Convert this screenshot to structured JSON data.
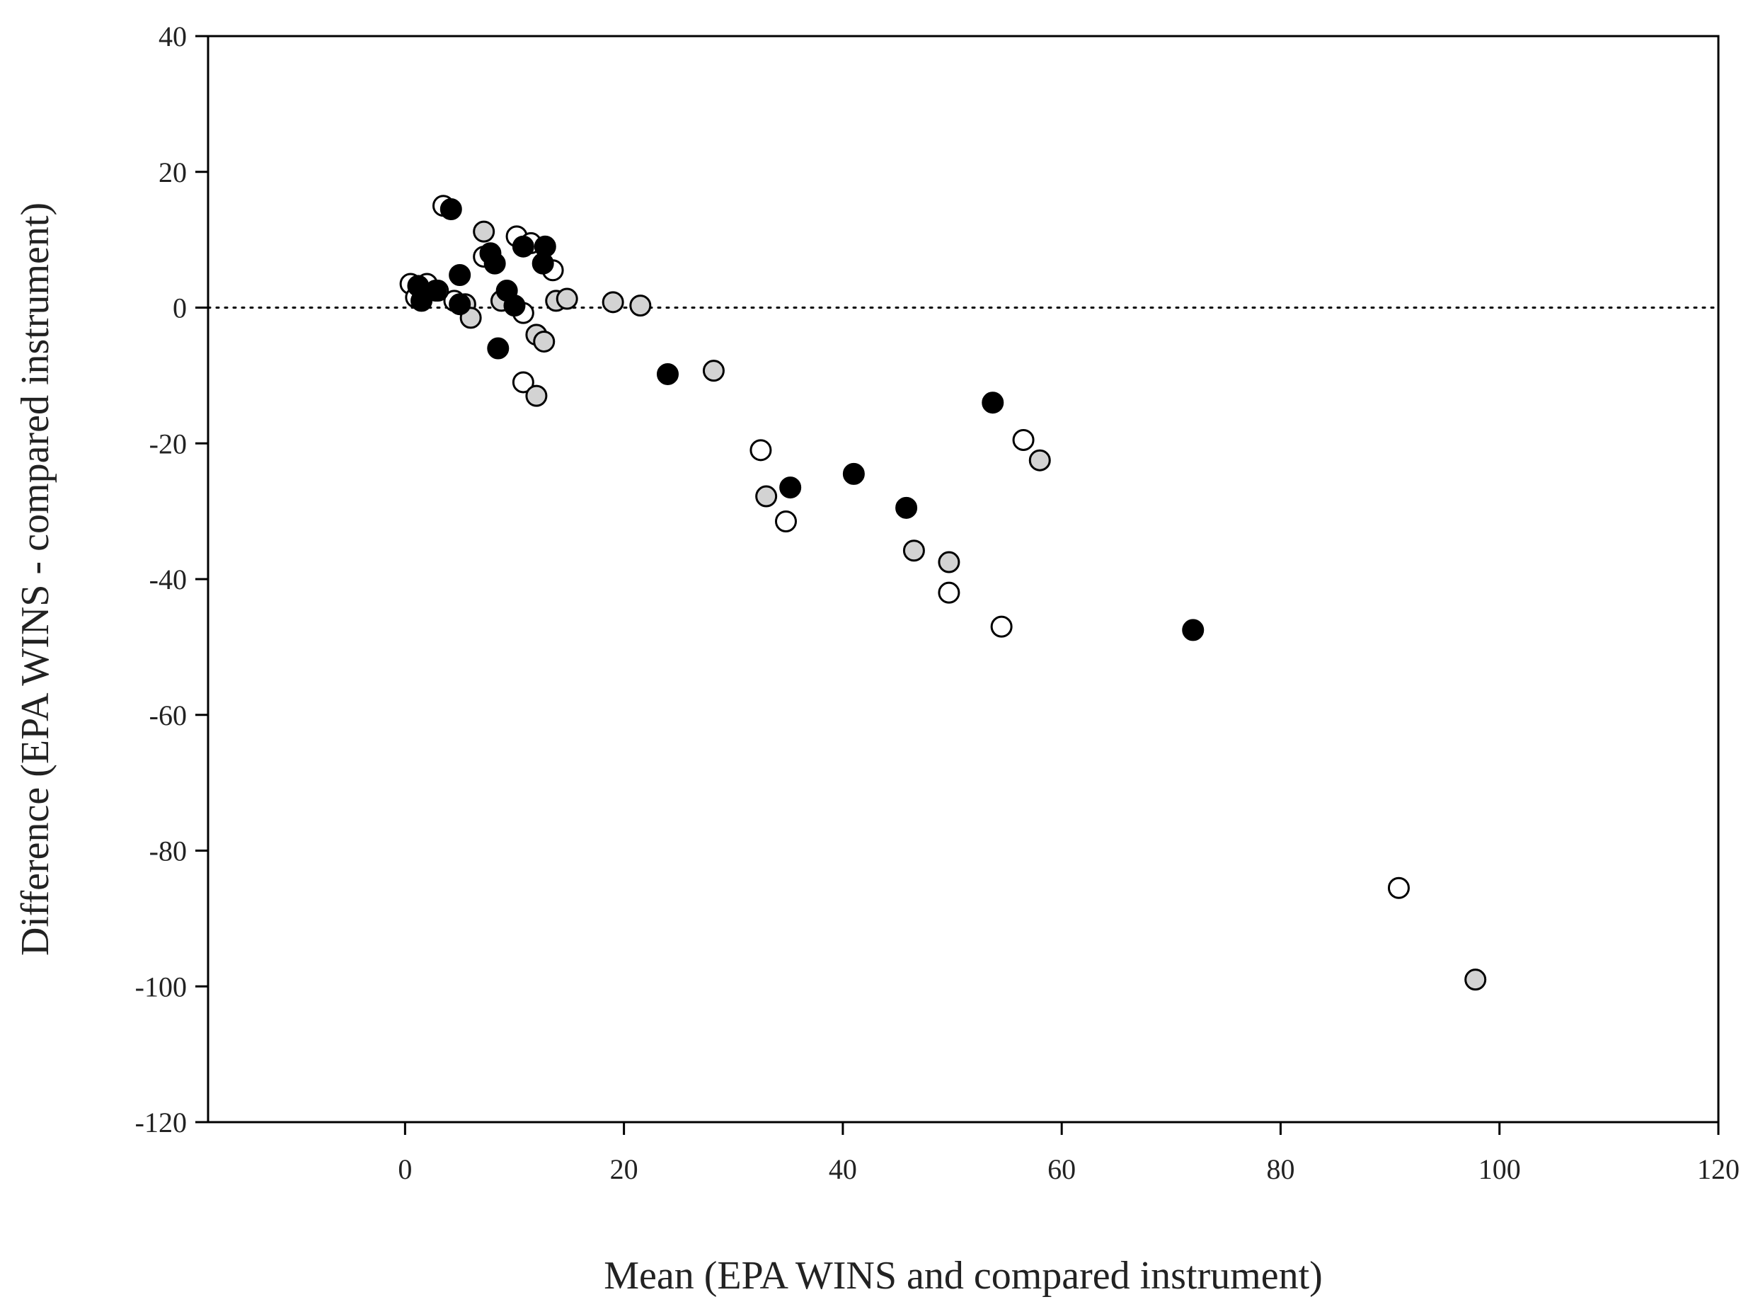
{
  "chart_data": {
    "type": "scatter",
    "title": "",
    "xlabel": "Mean (EPA WINS and compared instrument)",
    "ylabel": "Difference (EPA WINS - compared instrument)",
    "xlim": [
      -18,
      120
    ],
    "ylim": [
      -120,
      40
    ],
    "xticks": [
      0,
      20,
      40,
      60,
      80,
      100,
      120
    ],
    "yticks": [
      -120,
      -100,
      -80,
      -60,
      -40,
      -20,
      0,
      20,
      40
    ],
    "reference_line": {
      "y": 0,
      "style": "dotted"
    },
    "grid": false,
    "colors": {
      "open": "#ffffff",
      "gray": "#d3d3d3",
      "black": "#000000",
      "edge": "#000000"
    },
    "series": [
      {
        "name": "open",
        "fill": "#ffffff",
        "points": [
          [
            0.5,
            3.5
          ],
          [
            1.0,
            1.5
          ],
          [
            2.0,
            3.5
          ],
          [
            3.5,
            15.0
          ],
          [
            7.2,
            7.5
          ],
          [
            10.2,
            10.5
          ],
          [
            11.5,
            9.5
          ],
          [
            13.5,
            5.5
          ],
          [
            4.5,
            1.0
          ],
          [
            10.8,
            -0.8
          ],
          [
            10.8,
            -11.0
          ],
          [
            32.5,
            -21.0
          ],
          [
            34.8,
            -31.5
          ],
          [
            49.7,
            -42.0
          ],
          [
            54.5,
            -47.0
          ],
          [
            56.5,
            -19.5
          ],
          [
            90.8,
            -85.5
          ]
        ]
      },
      {
        "name": "gray",
        "fill": "#d3d3d3",
        "points": [
          [
            7.2,
            11.2
          ],
          [
            3.0,
            2.5
          ],
          [
            5.5,
            0.5
          ],
          [
            6.0,
            -1.5
          ],
          [
            8.8,
            1.0
          ],
          [
            12.0,
            -4.0
          ],
          [
            12.7,
            -5.0
          ],
          [
            12.0,
            -13.0
          ],
          [
            13.8,
            1.0
          ],
          [
            14.8,
            1.3
          ],
          [
            19.0,
            0.8
          ],
          [
            21.5,
            0.3
          ],
          [
            28.2,
            -9.3
          ],
          [
            33.0,
            -27.8
          ],
          [
            46.5,
            -35.8
          ],
          [
            49.7,
            -37.5
          ],
          [
            58.0,
            -22.5
          ],
          [
            97.8,
            -99.0
          ]
        ]
      },
      {
        "name": "black",
        "fill": "#000000",
        "points": [
          [
            4.2,
            14.5
          ],
          [
            1.2,
            3.2
          ],
          [
            1.5,
            1.0
          ],
          [
            2.8,
            2.5
          ],
          [
            5.0,
            4.8
          ],
          [
            5.0,
            0.5
          ],
          [
            7.8,
            8.0
          ],
          [
            8.2,
            6.5
          ],
          [
            9.3,
            2.5
          ],
          [
            10.0,
            0.3
          ],
          [
            10.8,
            9.0
          ],
          [
            12.8,
            9.0
          ],
          [
            12.6,
            6.5
          ],
          [
            8.5,
            -6.0
          ],
          [
            24.0,
            -9.8
          ],
          [
            35.2,
            -26.5
          ],
          [
            41.0,
            -24.5
          ],
          [
            45.8,
            -29.5
          ],
          [
            53.7,
            -14.0
          ],
          [
            72.0,
            -47.5
          ]
        ]
      }
    ]
  }
}
